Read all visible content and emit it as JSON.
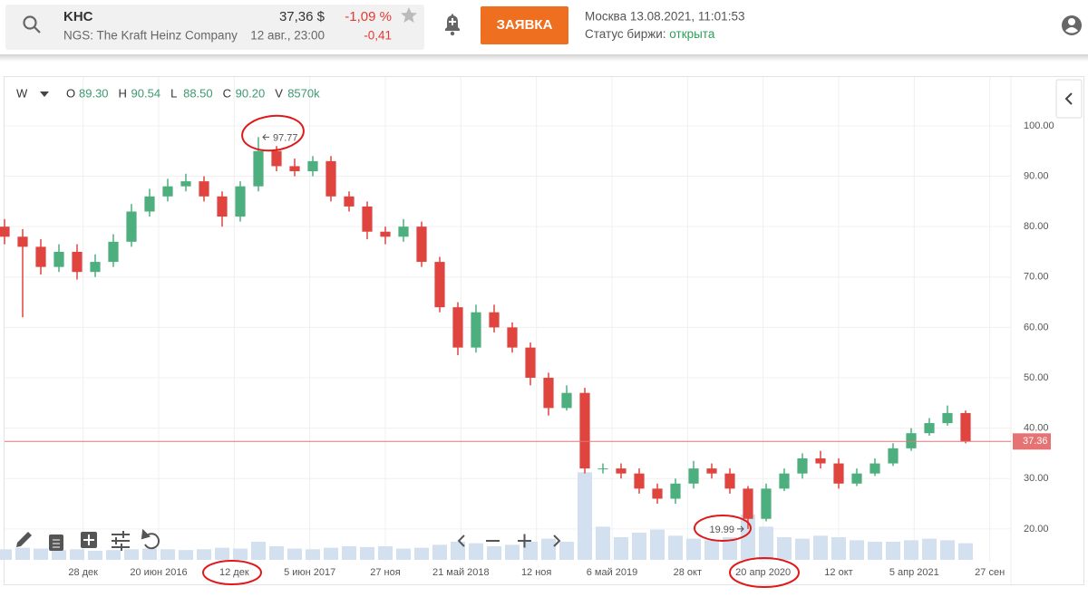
{
  "header": {
    "ticker": "KHC",
    "company": "NGS: The Kraft Heinz Company",
    "price": "37,36 $",
    "time": "12 авг., 23:00",
    "change_pct": "-1,09 %",
    "change": "-0,41",
    "button": "ЗАЯВКА",
    "datetime": "Москва 13.08.2021, 11:01:53",
    "status_label": "Статус биржи:",
    "status": "открыта"
  },
  "chart_data": {
    "type": "candlestick",
    "interval": "W",
    "ohlc_legend": [
      {
        "key": "O",
        "value": "89.30"
      },
      {
        "key": "H",
        "value": "90.54"
      },
      {
        "key": "L",
        "value": "88.50"
      },
      {
        "key": "C",
        "value": "90.20"
      },
      {
        "key": "V",
        "value": "8570k"
      }
    ],
    "x": [
      0,
      6,
      12,
      18,
      24,
      30,
      36,
      42,
      48,
      54,
      60,
      66,
      72,
      78,
      84,
      90,
      96,
      102,
      108,
      114,
      120,
      126,
      132,
      138,
      144,
      150,
      156,
      162,
      168,
      174,
      180,
      186,
      192,
      198,
      204,
      210,
      216,
      222,
      228,
      234,
      240,
      246,
      252,
      258,
      264,
      270,
      276,
      282,
      288,
      294,
      300,
      306,
      312,
      318
    ],
    "open": [
      80,
      78,
      76,
      72,
      75,
      71,
      73,
      77,
      83,
      86,
      88,
      89,
      86,
      82,
      88,
      95,
      92,
      91,
      93,
      86,
      84,
      79,
      78,
      80,
      73,
      64,
      56,
      63,
      60,
      56,
      50,
      44,
      47,
      32,
      32,
      31,
      28,
      26,
      29,
      32,
      31,
      28,
      22,
      28,
      31,
      34,
      33,
      29,
      31,
      33,
      36,
      39,
      41,
      43
    ],
    "high": [
      81.5,
      79.5,
      77.5,
      76.5,
      76.5,
      74.5,
      78.5,
      84.5,
      87.5,
      89.5,
      90.5,
      90,
      87,
      89,
      97.77,
      96,
      93.5,
      94,
      94,
      87,
      85,
      80,
      81.5,
      81,
      74,
      65,
      64.5,
      64.5,
      61,
      57,
      51,
      48.5,
      48,
      33,
      33,
      32,
      29,
      30,
      33.5,
      33,
      32,
      28.5,
      29,
      32,
      35,
      35.5,
      34,
      32,
      34,
      37,
      40,
      42,
      44.5,
      43.5
    ],
    "low": [
      76.5,
      62,
      70.5,
      71,
      69.5,
      70,
      72,
      76,
      82,
      85,
      87,
      85,
      80,
      81,
      87,
      91,
      90,
      90,
      85,
      83,
      77.5,
      76.5,
      77,
      72,
      63,
      54.5,
      55,
      59,
      55,
      48.5,
      42.5,
      43.5,
      31,
      31,
      30,
      27,
      25,
      25,
      28,
      30,
      27,
      19.99,
      21.5,
      27.5,
      30,
      32,
      28,
      28.5,
      30.5,
      32.5,
      35.5,
      38.5,
      40.5,
      37
    ],
    "close": [
      78,
      76,
      72,
      75,
      71,
      73,
      77,
      83,
      86,
      88,
      89,
      86,
      82,
      88,
      95,
      92,
      91,
      93,
      86,
      84,
      79,
      78,
      80,
      73,
      64,
      56,
      63,
      60,
      56,
      50,
      44,
      47,
      32,
      32,
      31,
      28,
      26,
      29,
      32,
      31,
      28,
      22,
      28,
      31,
      34,
      33,
      29,
      31,
      33,
      36,
      39,
      41,
      43,
      37.36
    ],
    "volume": [
      7000,
      8000,
      7500,
      6500,
      7000,
      6000,
      6500,
      7000,
      7500,
      7000,
      6500,
      7000,
      8000,
      7500,
      12000,
      9000,
      7500,
      7000,
      8000,
      9000,
      8500,
      9000,
      7500,
      8000,
      10000,
      12000,
      11000,
      9000,
      10000,
      12000,
      14000,
      12000,
      58000,
      22000,
      15000,
      18000,
      20000,
      16000,
      14000,
      13000,
      15000,
      30000,
      22000,
      15000,
      14000,
      16000,
      15000,
      13000,
      12000,
      12000,
      13000,
      14000,
      13000,
      11000
    ],
    "vlim": [
      0,
      60000
    ],
    "xlim": [
      0,
      333
    ],
    "xticks": [
      {
        "value": 26,
        "label": "28 дек"
      },
      {
        "value": 51,
        "label": "20 июн 2016"
      },
      {
        "value": 76,
        "label": "12 дек"
      },
      {
        "value": 101,
        "label": "5 июн 2017"
      },
      {
        "value": 126,
        "label": "27 ноя"
      },
      {
        "value": 151,
        "label": "21 май 2018"
      },
      {
        "value": 176,
        "label": "12 ноя"
      },
      {
        "value": 201,
        "label": "6 май 2019"
      },
      {
        "value": 226,
        "label": "28 окт"
      },
      {
        "value": 251,
        "label": "20 апр 2020"
      },
      {
        "value": 276,
        "label": "12 окт"
      },
      {
        "value": 301,
        "label": "5 апр 2021"
      },
      {
        "value": 326,
        "label": "27 сен"
      }
    ],
    "ylim": [
      13.5,
      109.7
    ],
    "yticks": [
      {
        "value": 20,
        "label": "20.00"
      },
      {
        "value": 30,
        "label": "30.00"
      },
      {
        "value": 40,
        "label": "40.00"
      },
      {
        "value": 50,
        "label": "50.00"
      },
      {
        "value": 60,
        "label": "60.00"
      },
      {
        "value": 70,
        "label": "70.00"
      },
      {
        "value": 80,
        "label": "80.00"
      },
      {
        "value": 90,
        "label": "90.00"
      },
      {
        "value": 100,
        "label": "100.00"
      }
    ],
    "grid": true,
    "colors": {
      "up": "#4caf7d",
      "down": "#e0443e",
      "volume": "#d3e0ef",
      "last": "#e57373"
    }
  }
}
